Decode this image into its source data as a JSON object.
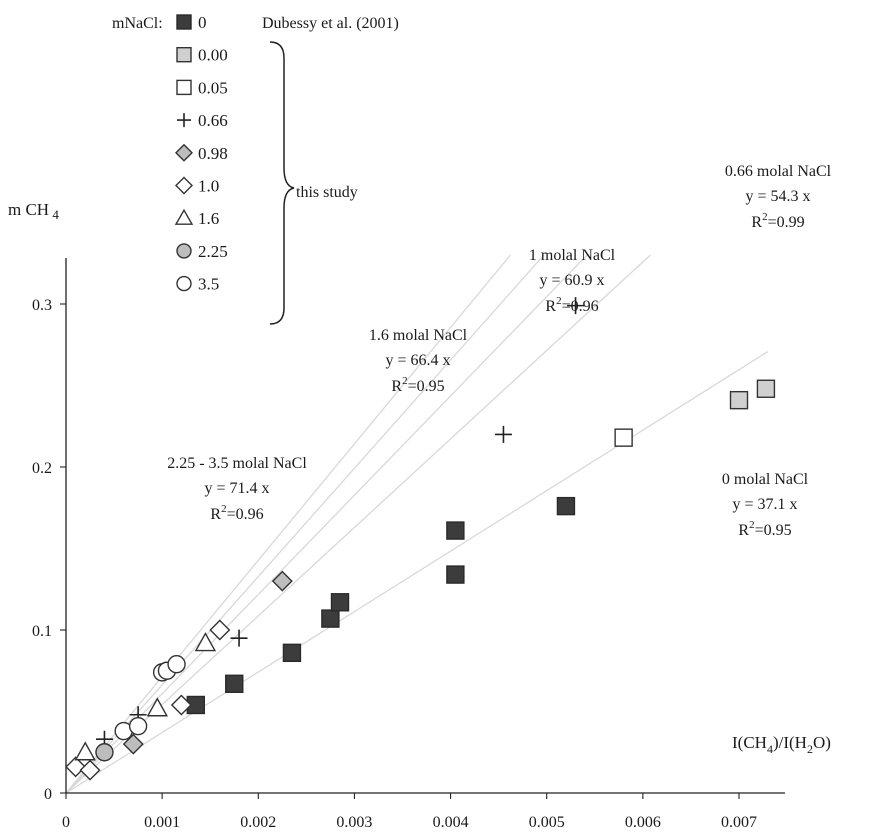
{
  "chart_data": {
    "type": "scatter",
    "title": "",
    "xlabel": "I(CH4)/I(H2O)",
    "ylabel": "m CH4",
    "xlim": [
      0,
      0.0073
    ],
    "ylim": [
      0,
      0.33
    ],
    "x_ticks": [
      "0",
      "0.001",
      "0.002",
      "0.003",
      "0.004",
      "0.005",
      "0.006",
      "0.007"
    ],
    "y_ticks": [
      "0",
      "0.1",
      "0.2",
      "0.3"
    ],
    "grid": false,
    "legend": {
      "placement": "top-left",
      "title": "mNaCl:",
      "source_label": "Dubessy et al. (2001)",
      "group_label": "this study"
    },
    "series": [
      {
        "name": "0",
        "marker": "square-dark",
        "color": "#3f3f3f",
        "points": [
          [
            0.00135,
            0.054
          ],
          [
            0.00175,
            0.067
          ],
          [
            0.00235,
            0.086
          ],
          [
            0.00275,
            0.107
          ],
          [
            0.00285,
            0.117
          ],
          [
            0.00405,
            0.134
          ],
          [
            0.00405,
            0.161
          ],
          [
            0.0052,
            0.176
          ]
        ]
      },
      {
        "name": "0.00",
        "marker": "square-grey",
        "color": "#cfcfcf",
        "points": [
          [
            0.007,
            0.241
          ],
          [
            0.00728,
            0.248
          ]
        ]
      },
      {
        "name": "0.05",
        "marker": "square-open",
        "color": "#ffffff",
        "points": [
          [
            0.0058,
            0.218
          ]
        ]
      },
      {
        "name": "0.66",
        "marker": "plus",
        "color": "#222222",
        "points": [
          [
            0.0004,
            0.033
          ],
          [
            0.00075,
            0.048
          ],
          [
            0.0018,
            0.095
          ],
          [
            0.00455,
            0.22
          ],
          [
            0.0053,
            0.299
          ]
        ]
      },
      {
        "name": "0.98",
        "marker": "diamond-grey",
        "color": "#bdbdbd",
        "points": [
          [
            0.0007,
            0.03
          ],
          [
            0.00225,
            0.13
          ]
        ]
      },
      {
        "name": "1.0",
        "marker": "diamond-open",
        "color": "#ffffff",
        "points": [
          [
            0.0001,
            0.016
          ],
          [
            0.00025,
            0.014
          ],
          [
            0.0012,
            0.054
          ],
          [
            0.0016,
            0.1
          ]
        ]
      },
      {
        "name": "1.6",
        "marker": "triangle-open",
        "color": "#ffffff",
        "points": [
          [
            0.0002,
            0.025
          ],
          [
            0.00095,
            0.052
          ],
          [
            0.00145,
            0.092
          ]
        ]
      },
      {
        "name": "2.25",
        "marker": "circle-grey",
        "color": "#bdbdbd",
        "points": [
          [
            0.0004,
            0.025
          ]
        ]
      },
      {
        "name": "3.5",
        "marker": "circle-open",
        "color": "#ffffff",
        "points": [
          [
            0.0006,
            0.038
          ],
          [
            0.00075,
            0.041
          ],
          [
            0.001,
            0.074
          ],
          [
            0.00105,
            0.075
          ],
          [
            0.00115,
            0.079
          ]
        ]
      }
    ],
    "fits": [
      {
        "label": "0 molal NaCl",
        "equation": "y = 37.1 x",
        "r2_prefix": "R",
        "r2_suffix": "=0.95",
        "slope": 37.1
      },
      {
        "label": "0.66 molal NaCl",
        "equation": "y = 54.3 x",
        "r2_prefix": "R",
        "r2_suffix": "=0.99",
        "slope": 54.3
      },
      {
        "label": "1 molal NaCl",
        "equation": "y = 60.9 x",
        "r2_prefix": "R",
        "r2_suffix": "=0.96",
        "slope": 60.9
      },
      {
        "label": "1.6 molal NaCl",
        "equation": "y = 66.4 x",
        "r2_prefix": "R",
        "r2_suffix": "=0.95",
        "slope": 66.4
      },
      {
        "label": "2.25 - 3.5 molal NaCl",
        "equation": "y = 71.4 x",
        "r2_prefix": "R",
        "r2_suffix": "=0.96",
        "slope": 71.4
      }
    ],
    "axis_text": {
      "ylabel_main": "m CH",
      "ylabel_sub": "4",
      "xlabel_a": "I(CH",
      "xlabel_sub1": "4",
      "xlabel_b": ")/I(H",
      "xlabel_sub2": "2",
      "xlabel_c": "O)"
    },
    "r2_superscript": "2"
  }
}
